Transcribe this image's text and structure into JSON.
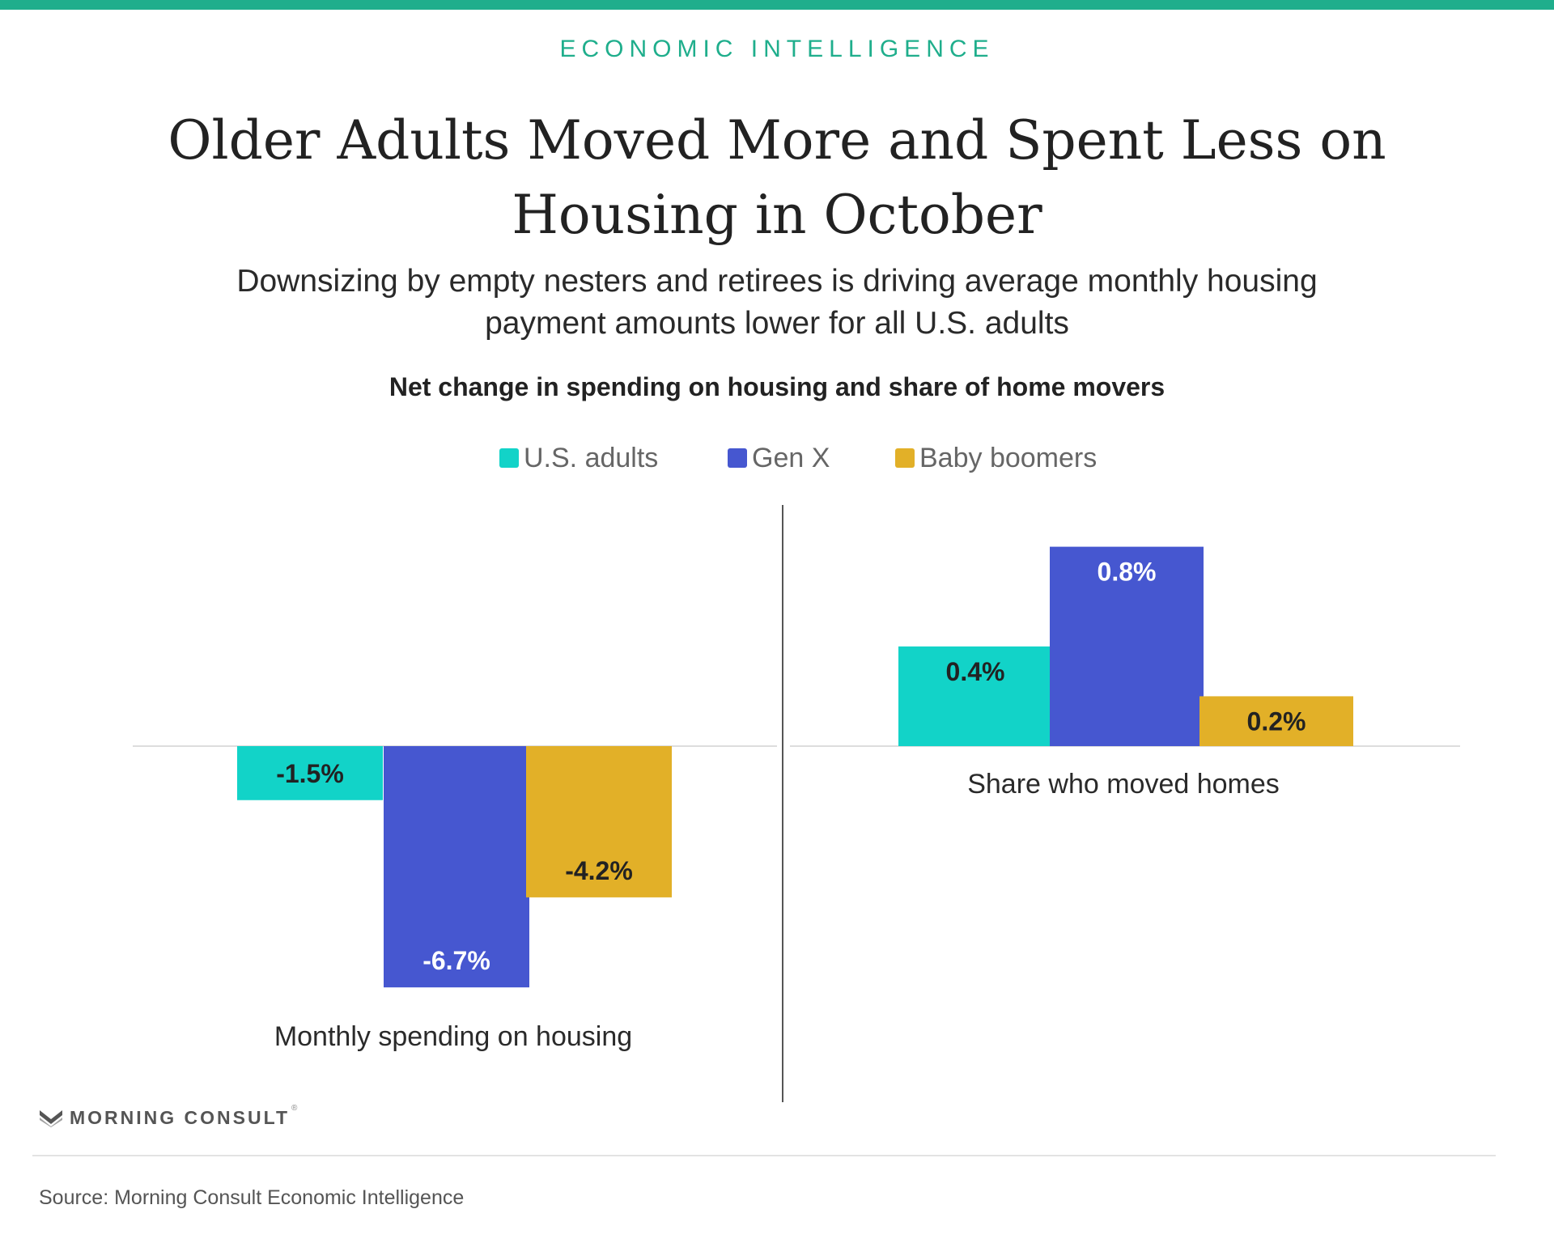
{
  "header": {
    "kicker": "ECONOMIC INTELLIGENCE",
    "title": "Older Adults Moved More and Spent Less on Housing in October",
    "subtitle": "Downsizing by empty nesters and retirees is driving average monthly housing payment amounts lower for all U.S. adults"
  },
  "colors": {
    "accent": "#1fae8c",
    "us_adults": "#12d3c8",
    "gen_x": "#4657d0",
    "baby_boomers": "#e2b028"
  },
  "footer": {
    "logo": "MORNING CONSULT",
    "logo_mark": "®",
    "source": "Source: Morning Consult Economic Intelligence"
  },
  "chart_data": {
    "type": "bar",
    "title": "Net change in spending on housing and share of home movers",
    "legend_position": "top",
    "grid": false,
    "series_names": [
      "U.S. adults",
      "Gen X",
      "Baby boomers"
    ],
    "panels": [
      {
        "category": "Monthly spending on housing",
        "values": [
          -1.5,
          -6.7,
          -4.2
        ],
        "labels": [
          "-1.5%",
          "-6.7%",
          "-4.2%"
        ],
        "ylim": [
          -7,
          7
        ]
      },
      {
        "category": "Share who moved homes",
        "values": [
          0.4,
          0.8,
          0.2
        ],
        "labels": [
          "0.4%",
          "0.8%",
          "0.2%"
        ],
        "ylim": [
          -2,
          1
        ]
      }
    ]
  }
}
